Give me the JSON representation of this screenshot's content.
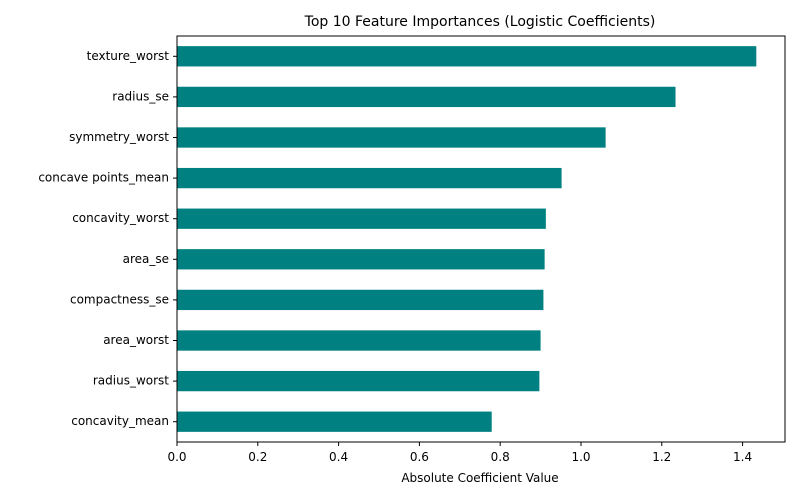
{
  "chart_data": {
    "type": "bar",
    "orientation": "horizontal",
    "title": "Top 10 Feature Importances (Logistic Coefficients)",
    "xlabel": "Absolute Coefficient Value",
    "ylabel": "",
    "categories": [
      "texture_worst",
      "radius_se",
      "symmetry_worst",
      "concave points_mean",
      "concavity_worst",
      "area_se",
      "compactness_se",
      "area_worst",
      "radius_worst",
      "concavity_mean"
    ],
    "values": [
      1.434,
      1.234,
      1.061,
      0.952,
      0.913,
      0.91,
      0.907,
      0.9,
      0.897,
      0.779
    ],
    "xlim": [
      0,
      1.505
    ],
    "xticks": [
      "0.0",
      "0.2",
      "0.4",
      "0.6",
      "0.8",
      "1.0",
      "1.2",
      "1.4"
    ],
    "bar_color": "#008080",
    "grid": false,
    "legend": "none"
  }
}
